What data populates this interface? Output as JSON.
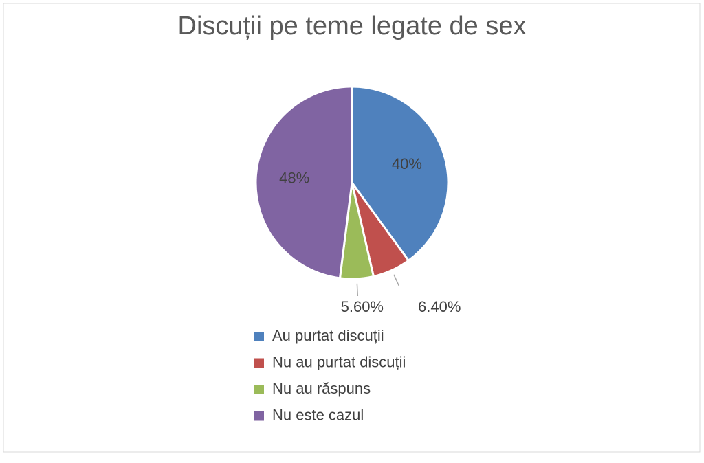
{
  "chart_data": {
    "type": "pie",
    "title": "Discuții pe teme legate de sex",
    "categories": [
      "Au purtat discuții",
      "Nu au purtat discuții",
      "Nu au răspuns",
      "Nu este cazul"
    ],
    "values": [
      40,
      6.4,
      5.6,
      48
    ],
    "value_labels": [
      "40%",
      "6.40%",
      "5.60%",
      "48%"
    ],
    "colors": [
      "#4f81bd",
      "#c0504d",
      "#9bbb59",
      "#8064a2"
    ],
    "legend": "bottom"
  }
}
